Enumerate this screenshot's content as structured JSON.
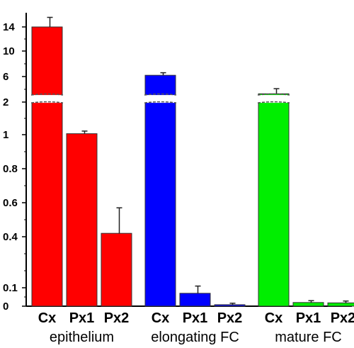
{
  "chart_data": {
    "type": "bar",
    "axis_break": true,
    "y_ticks": [
      "14",
      "10",
      "6",
      "2",
      "1",
      "0.8",
      "0.6",
      "0.4",
      "0.1",
      "0"
    ],
    "groups": [
      {
        "label": "epithelium",
        "color": "#ff0000",
        "bars": [
          {
            "category": "Cx",
            "value": 14,
            "error": 1.5,
            "broken": true
          },
          {
            "category": "Px1",
            "value": 1.03,
            "error": 0.08,
            "broken": false
          },
          {
            "category": "Px2",
            "value": 0.42,
            "error": 0.15,
            "broken": false
          }
        ]
      },
      {
        "label": "elongating FC",
        "color": "#0000ff",
        "bars": [
          {
            "category": "Cx",
            "value": 6.2,
            "error": 0.4,
            "broken": true
          },
          {
            "category": "Px1",
            "value": 0.07,
            "error": 0.04,
            "broken": false
          },
          {
            "category": "Px2",
            "value": 0.008,
            "error": 0.008,
            "broken": false
          }
        ]
      },
      {
        "label": "mature FC",
        "color": "#00ee00",
        "bars": [
          {
            "category": "Cx",
            "value": 3.3,
            "error": 0.8,
            "broken": true
          },
          {
            "category": "Px1",
            "value": 0.02,
            "error": 0.01,
            "broken": false
          },
          {
            "category": "Px2",
            "value": 0.018,
            "error": 0.01,
            "broken": false
          }
        ]
      }
    ]
  }
}
